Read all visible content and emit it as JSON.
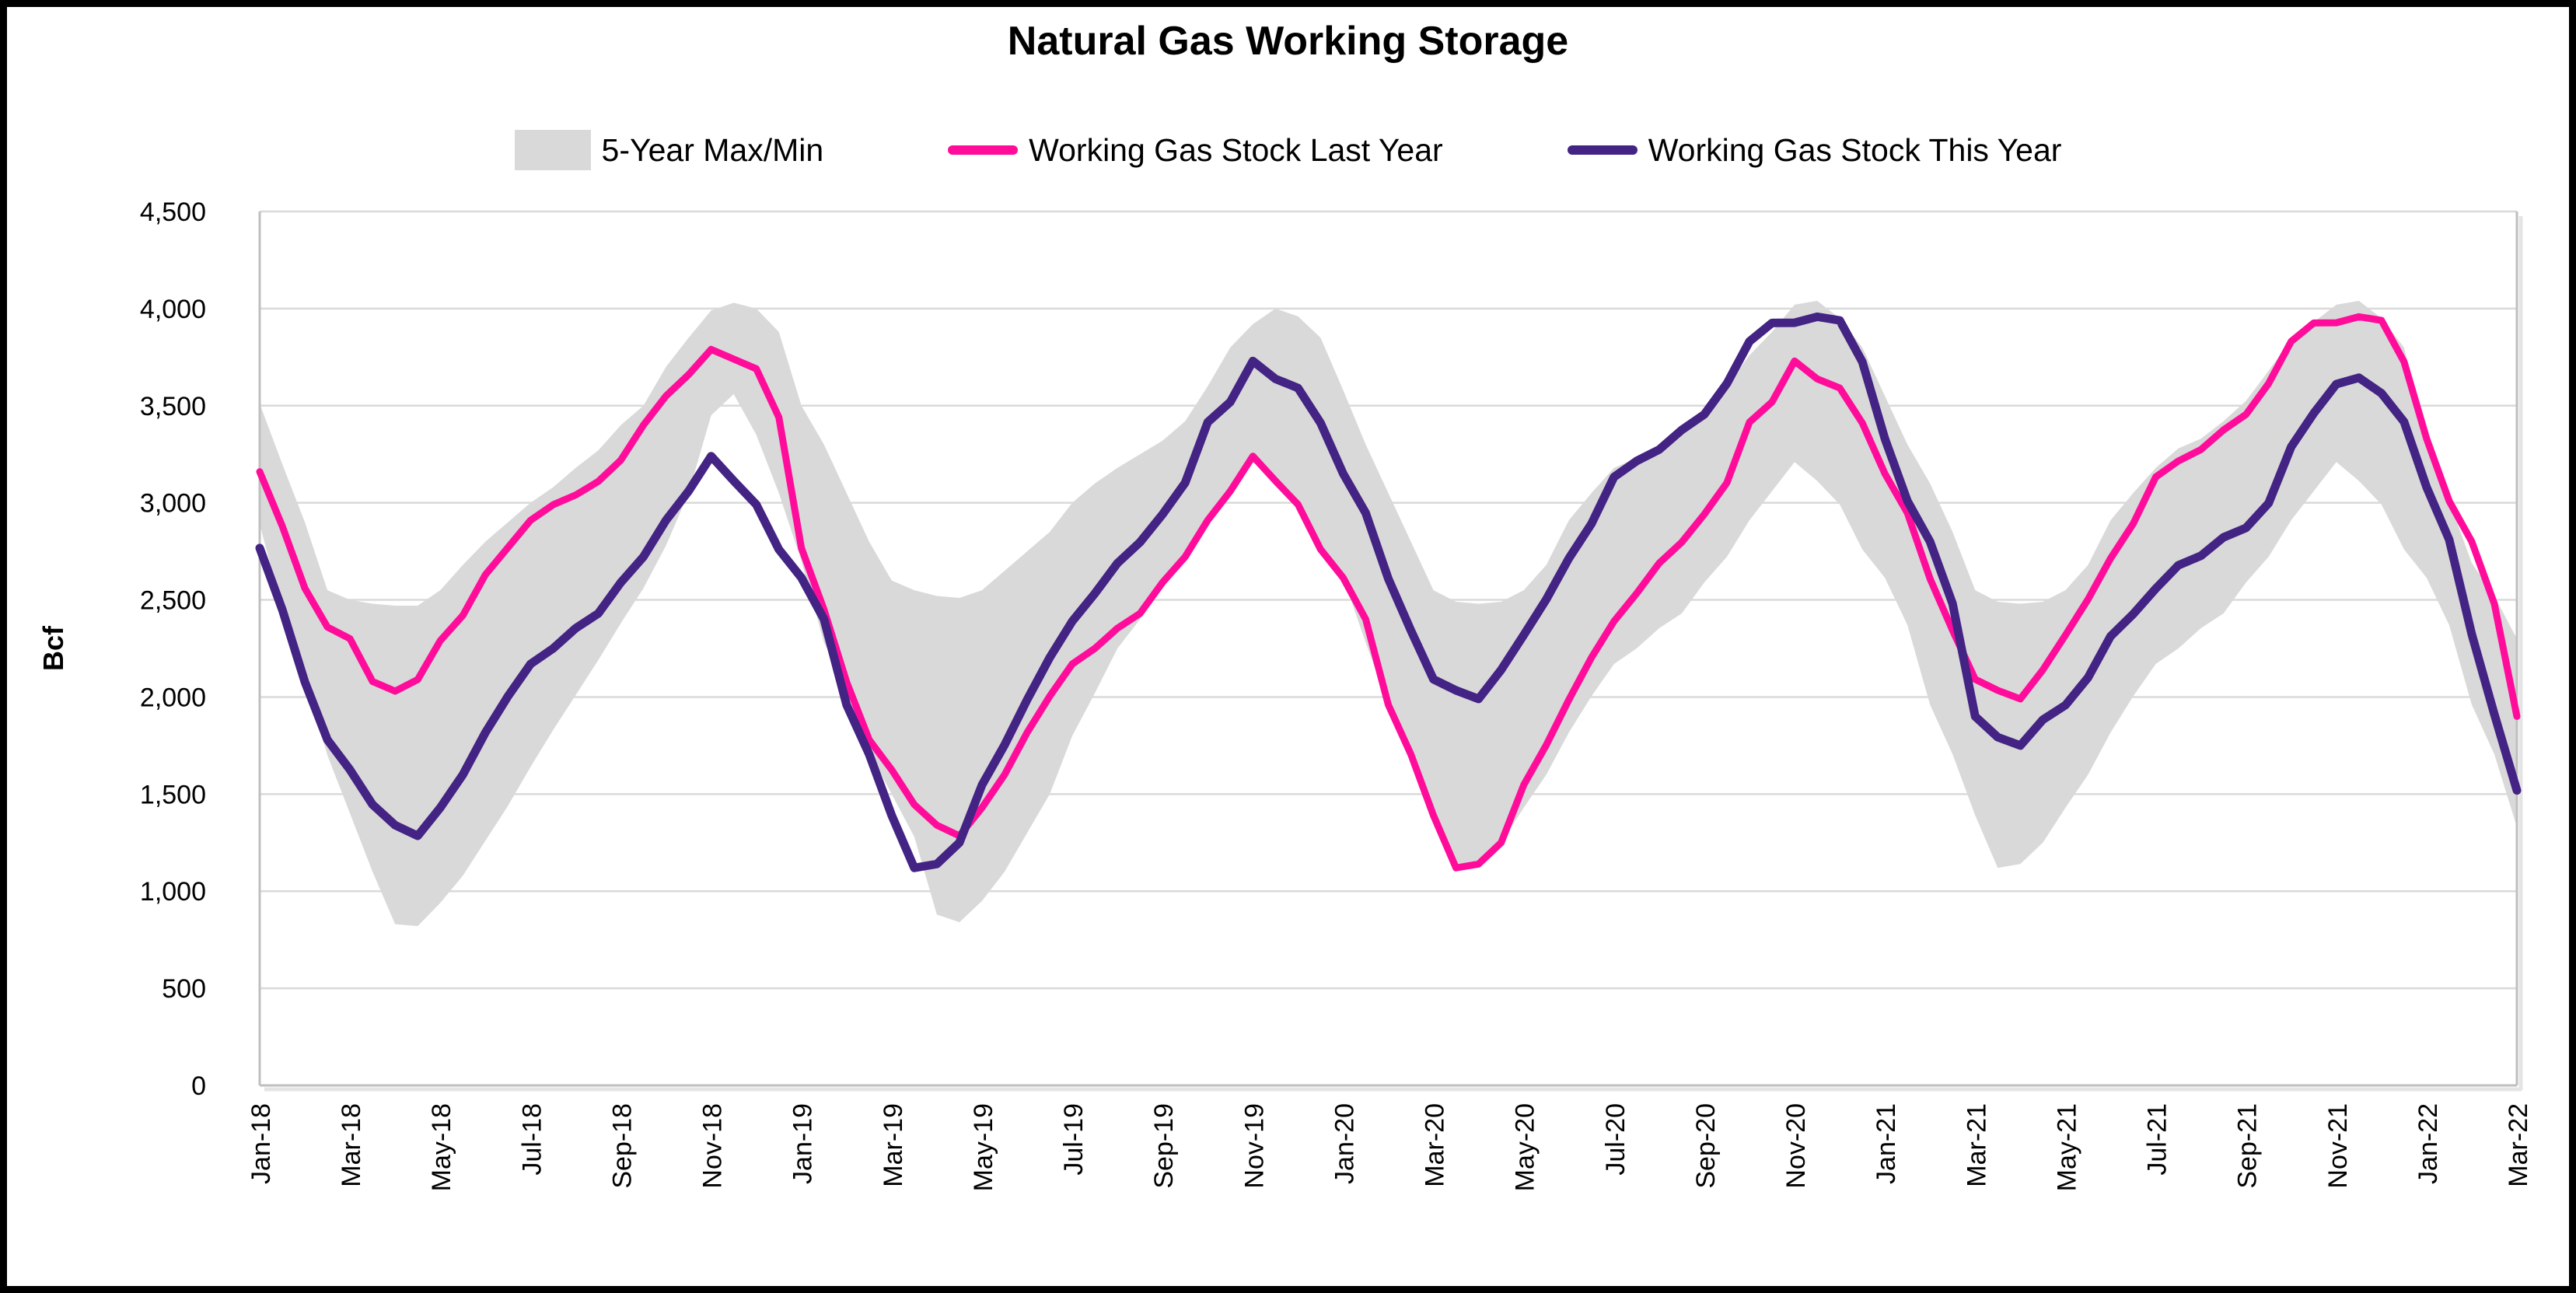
{
  "title": "Natural Gas Working Storage",
  "legend": {
    "items": [
      {
        "label": "5-Year Max/Min",
        "swatch": "band-swatch",
        "color": "#D9D9D9"
      },
      {
        "label": "Working Gas Stock Last Year",
        "swatch": "line-swatch",
        "color": "#FF0C9B"
      },
      {
        "label": "Working Gas Stock This Year",
        "swatch": "line-swatch",
        "color": "#432383"
      }
    ]
  },
  "y_axis": {
    "label": "Bcf",
    "ticks": [
      {
        "value": 0,
        "label": "0"
      },
      {
        "value": 500,
        "label": "500"
      },
      {
        "value": 1000,
        "label": "1,000"
      },
      {
        "value": 1500,
        "label": "1,500"
      },
      {
        "value": 2000,
        "label": "2,000"
      },
      {
        "value": 2500,
        "label": "2,500"
      },
      {
        "value": 3000,
        "label": "3,000"
      },
      {
        "value": 3500,
        "label": "3,500"
      },
      {
        "value": 4000,
        "label": "4,000"
      },
      {
        "value": 4500,
        "label": "4,500"
      }
    ]
  },
  "x_axis": {
    "labels": [
      "Jan-18",
      "Mar-18",
      "May-18",
      "Jul-18",
      "Sep-18",
      "Nov-18",
      "Jan-19",
      "Mar-19",
      "May-19",
      "Jul-19",
      "Sep-19",
      "Nov-19",
      "Jan-20",
      "Mar-20",
      "May-20",
      "Jul-20",
      "Sep-20",
      "Nov-20",
      "Jan-21",
      "Mar-21",
      "May-21",
      "Jul-21",
      "Sep-21",
      "Nov-21",
      "Jan-22",
      "Mar-22"
    ]
  },
  "chart_data": {
    "type": "line",
    "title": "Natural Gas Working Storage",
    "xlabel": "",
    "ylabel": "Bcf",
    "ylim": [
      0,
      4500
    ],
    "y_tick_step": 500,
    "grid": "horizontal",
    "legend_position": "top",
    "x_unit": "semi-monthly points, Jan-2018 through early Mar-2022 (2 points per month)",
    "x_months_span": 50,
    "x_tick_labels": [
      "Jan-18",
      "Mar-18",
      "May-18",
      "Jul-18",
      "Sep-18",
      "Nov-18",
      "Jan-19",
      "Mar-19",
      "May-19",
      "Jul-19",
      "Sep-19",
      "Nov-19",
      "Jan-20",
      "Mar-20",
      "May-20",
      "Jul-20",
      "Sep-20",
      "Nov-20",
      "Jan-21",
      "Mar-21",
      "May-21",
      "Jul-21",
      "Sep-21",
      "Nov-21",
      "Jan-22",
      "Mar-22"
    ],
    "series": [
      {
        "name": "5-Year Max/Min",
        "type": "band",
        "color": "#D9D9D9",
        "max": [
          3510,
          3200,
          2900,
          2550,
          2500,
          2480,
          2470,
          2470,
          2550,
          2680,
          2800,
          2900,
          3000,
          3080,
          3180,
          3270,
          3400,
          3500,
          3700,
          3850,
          3990,
          4030,
          4000,
          3880,
          3500,
          3300,
          3050,
          2800,
          2600,
          2550,
          2520,
          2510,
          2550,
          2650,
          2750,
          2850,
          3000,
          3100,
          3180,
          3250,
          3320,
          3420,
          3600,
          3800,
          3920,
          4000,
          3960,
          3850,
          3580,
          3300,
          3050,
          2800,
          2550,
          2490,
          2480,
          2490,
          2550,
          2680,
          2910,
          3050,
          3180,
          3230,
          3290,
          3370,
          3450,
          3600,
          3760,
          3880,
          4020,
          4040,
          3950,
          3800,
          3550,
          3300,
          3100,
          2850,
          2550,
          2490,
          2480,
          2490,
          2550,
          2680,
          2910,
          3050,
          3180,
          3280,
          3330,
          3420,
          3525,
          3680,
          3840,
          3930,
          4020,
          4040,
          3950,
          3800,
          3330,
          3010,
          2690,
          2520,
          2300
        ],
        "min": [
          2890,
          2450,
          2100,
          1700,
          1400,
          1100,
          830,
          820,
          940,
          1080,
          1260,
          1440,
          1640,
          1830,
          2010,
          2190,
          2380,
          2560,
          2780,
          3050,
          3450,
          3560,
          3350,
          3050,
          2700,
          2280,
          2050,
          1720,
          1500,
          1280,
          880,
          840,
          950,
          1100,
          1300,
          1500,
          1800,
          2020,
          2250,
          2400,
          2570,
          2720,
          2910,
          3060,
          3210,
          3113,
          2991,
          2760,
          2614,
          2280,
          1960,
          1705,
          1390,
          1120,
          1140,
          1250,
          1430,
          1600,
          1817,
          2004,
          2170,
          2250,
          2354,
          2430,
          2590,
          2722,
          2910,
          3060,
          3210,
          3113,
          2991,
          2760,
          2614,
          2370,
          1960,
          1705,
          1390,
          1120,
          1140,
          1250,
          1430,
          1600,
          1817,
          2004,
          2170,
          2250,
          2354,
          2430,
          2590,
          2722,
          2910,
          3060,
          3210,
          3113,
          2991,
          2760,
          2614,
          2370,
          1960,
          1705,
          1330
        ]
      },
      {
        "name": "Working Gas Stock Last Year",
        "type": "line",
        "color": "#FF0C9B",
        "stroke_width": 9,
        "values": [
          3160,
          2880,
          2560,
          2360,
          2300,
          2080,
          2030,
          2090,
          2290,
          2420,
          2630,
          2770,
          2910,
          2990,
          3040,
          3110,
          3220,
          3400,
          3550,
          3660,
          3790,
          3740,
          3690,
          3440,
          2767,
          2450,
          2078,
          1780,
          1625,
          1446,
          1340,
          1285,
          1430,
          1600,
          1817,
          2004,
          2170,
          2250,
          2354,
          2430,
          2590,
          2722,
          2910,
          3060,
          3240,
          3113,
          2991,
          2760,
          2614,
          2400,
          1960,
          1705,
          1390,
          1120,
          1140,
          1250,
          1547,
          1753,
          1986,
          2203,
          2390,
          2533,
          2689,
          2797,
          2941,
          3103,
          3415,
          3519,
          3730,
          3638,
          3591,
          3411,
          3150,
          2947,
          2609,
          2343,
          2091,
          2034,
          1990,
          2140,
          2319,
          2503,
          2714,
          2892,
          3133,
          3215,
          3274,
          3375,
          3455,
          3614,
          3831,
          3926,
          3927,
          3958,
          3939,
          3726,
          3330,
          3009,
          2800,
          2480,
          1900
        ]
      },
      {
        "name": "Working Gas Stock This Year",
        "type": "line",
        "color": "#432383",
        "stroke_width": 11,
        "values": [
          2767,
          2450,
          2078,
          1780,
          1625,
          1446,
          1340,
          1285,
          1430,
          1600,
          1817,
          2004,
          2170,
          2250,
          2354,
          2430,
          2590,
          2722,
          2910,
          3060,
          3240,
          3113,
          2991,
          2760,
          2614,
          2400,
          1960,
          1705,
          1390,
          1120,
          1140,
          1250,
          1547,
          1753,
          1986,
          2203,
          2390,
          2533,
          2689,
          2797,
          2941,
          3103,
          3415,
          3519,
          3730,
          3638,
          3591,
          3411,
          3150,
          2947,
          2609,
          2343,
          2091,
          2034,
          1990,
          2140,
          2319,
          2503,
          2714,
          2892,
          3133,
          3215,
          3274,
          3375,
          3455,
          3614,
          3831,
          3926,
          3927,
          3958,
          3939,
          3726,
          3330,
          3009,
          2800,
          2480,
          1900,
          1793,
          1750,
          1883,
          1958,
          2100,
          2313,
          2427,
          2558,
          2678,
          2727,
          2822,
          2871,
          2998,
          3288,
          3461,
          3611,
          3644,
          3564,
          3417,
          3080,
          2810,
          2323,
          1911,
          1519
        ]
      }
    ],
    "colors": {
      "band": "#D9D9D9",
      "last_year_line": "#FF0C9B",
      "this_year_line": "#432383",
      "gridline": "#DADADA",
      "axis_line": "#BFBFBF",
      "text": "#000000",
      "outer_border": "#000000",
      "background": "#FFFFFF"
    }
  }
}
